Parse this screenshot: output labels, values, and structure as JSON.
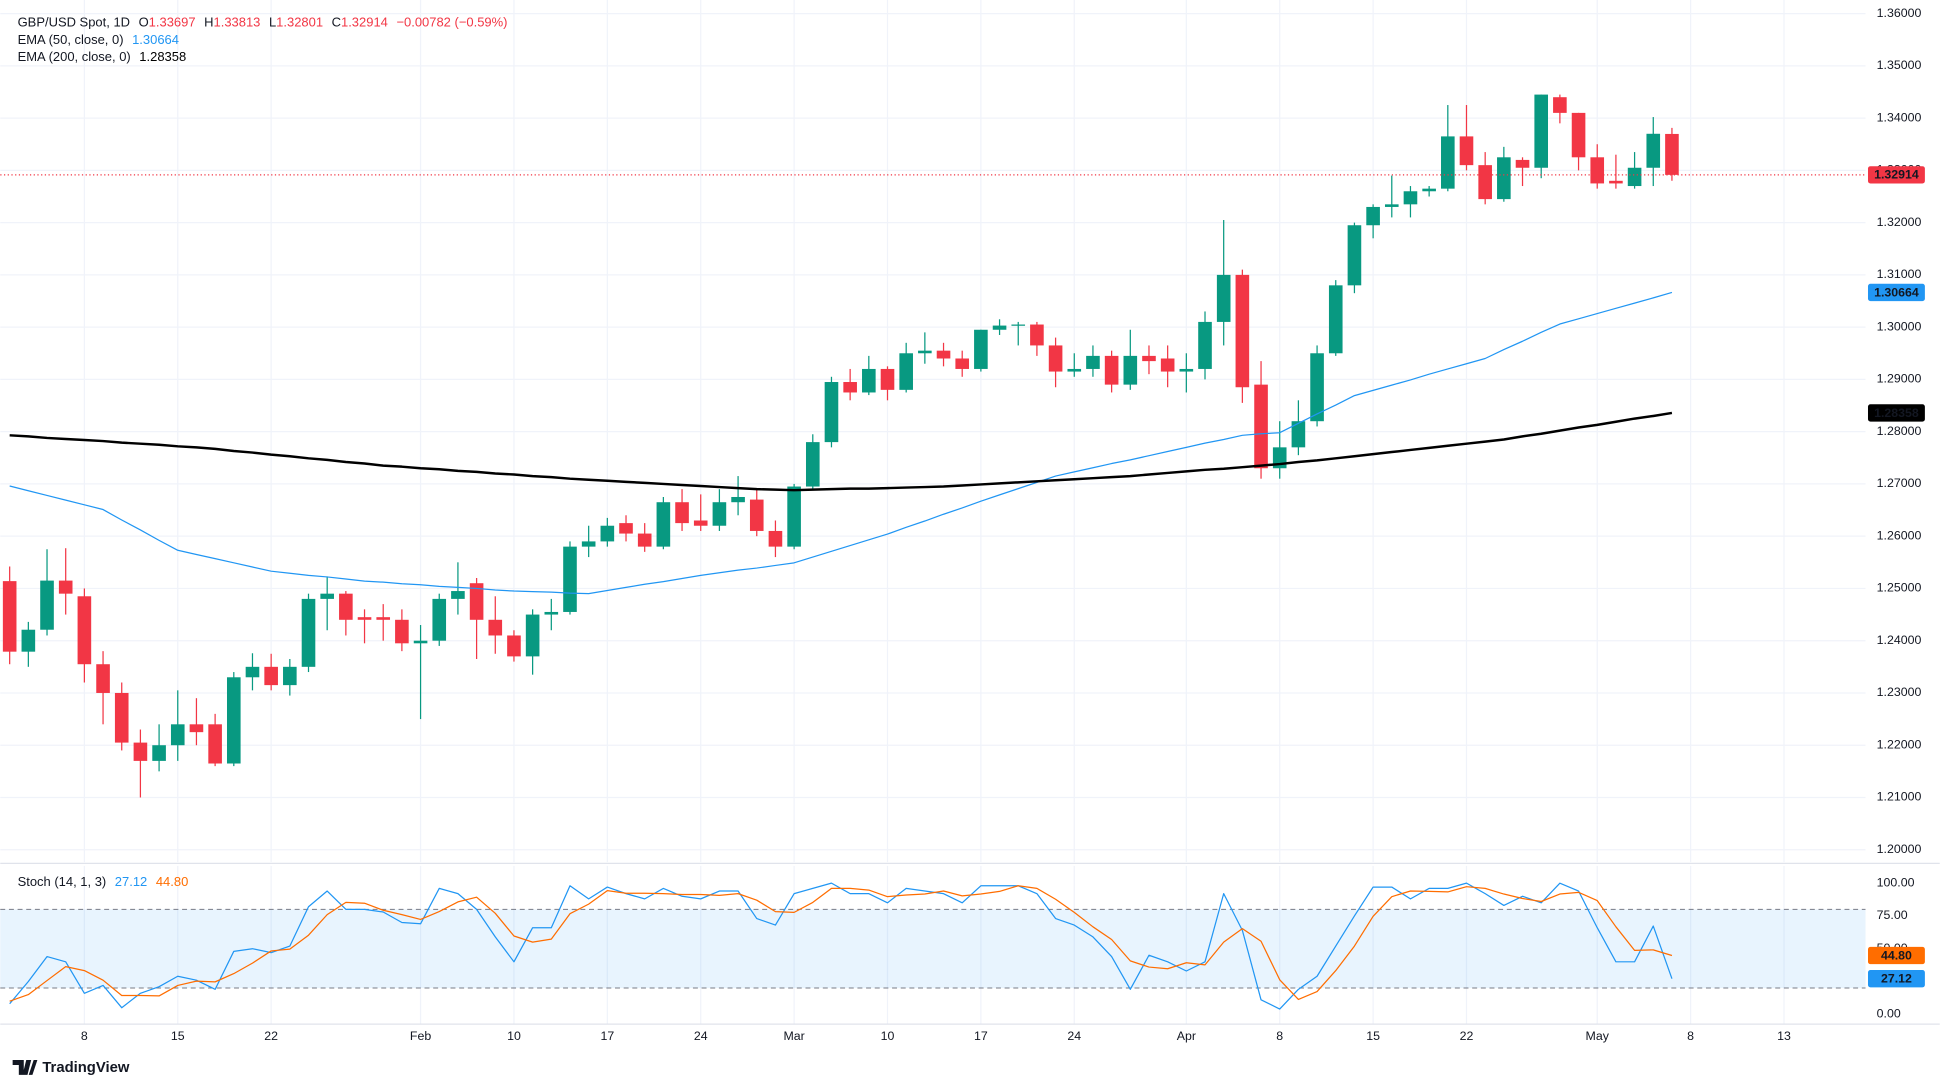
{
  "chart_data": [
    {
      "type": "candlestick",
      "title": "GBP/USD Spot, 1D",
      "ohlc_letters": [
        "O",
        "H",
        "L",
        "C"
      ],
      "change": "−0.00782 (−0.59%)",
      "categories": [
        null,
        null,
        null,
        null,
        "8",
        null,
        null,
        null,
        null,
        "15",
        null,
        null,
        null,
        null,
        "22",
        null,
        null,
        null,
        null,
        null,
        null,
        null,
        "Feb",
        null,
        null,
        null,
        null,
        "10",
        null,
        null,
        null,
        null,
        "17",
        null,
        null,
        null,
        null,
        "24",
        null,
        null,
        null,
        null,
        "Mar",
        null,
        null,
        null,
        null,
        "10",
        null,
        null,
        null,
        null,
        "17",
        null,
        null,
        null,
        null,
        "24",
        null,
        null,
        null,
        null,
        null,
        "Apr",
        null,
        null,
        null,
        null,
        "8",
        null,
        null,
        null,
        null,
        "15",
        null,
        null,
        null,
        null,
        "22",
        null,
        null,
        null,
        null,
        null,
        null,
        "May",
        null,
        null,
        null,
        null,
        "8",
        null,
        null,
        null,
        null,
        "13"
      ],
      "open": [
        1.2514,
        1.2379,
        1.2421,
        1.2515,
        1.2485,
        1.2355,
        1.23,
        1.2205,
        1.217,
        1.22,
        1.224,
        1.224,
        1.2165,
        1.233,
        1.235,
        1.2315,
        1.235,
        1.248,
        1.249,
        1.2445,
        1.2445,
        1.244,
        1.2395,
        1.24,
        1.248,
        1.251,
        1.244,
        1.241,
        1.237,
        1.245,
        1.2455,
        1.258,
        1.259,
        1.2625,
        1.2605,
        1.258,
        1.2665,
        1.263,
        1.262,
        1.2665,
        1.267,
        1.261,
        1.258,
        1.2695,
        1.278,
        1.2895,
        1.2875,
        1.292,
        1.288,
        1.295,
        1.2955,
        1.294,
        1.292,
        1.2995,
        1.3003,
        1.3005,
        1.2965,
        1.2915,
        1.292,
        1.2945,
        1.289,
        1.2945,
        1.294,
        1.2915,
        1.292,
        1.301,
        1.31,
        1.289,
        1.273,
        1.277,
        1.282,
        1.295,
        1.308,
        1.3195,
        1.323,
        1.3235,
        1.326,
        1.3265,
        1.3365,
        1.331,
        1.3245,
        1.332,
        1.3305,
        1.344,
        1.341,
        1.3325,
        1.328,
        1.327,
        1.3305,
        1.33697,
        null,
        null,
        null,
        null,
        null,
        null
      ],
      "high": [
        1.2542,
        1.2436,
        1.2575,
        1.2577,
        1.25,
        1.238,
        1.232,
        1.223,
        1.224,
        1.2305,
        1.229,
        1.226,
        1.234,
        1.2376,
        1.2375,
        1.2365,
        1.249,
        1.2523,
        1.2495,
        1.246,
        1.247,
        1.246,
        1.243,
        1.249,
        1.255,
        1.252,
        1.2485,
        1.242,
        1.246,
        1.248,
        1.259,
        1.262,
        1.2635,
        1.264,
        1.2625,
        1.2675,
        1.269,
        1.268,
        1.269,
        1.2715,
        1.269,
        1.263,
        1.27,
        1.2795,
        1.2905,
        1.292,
        1.2945,
        1.2925,
        1.297,
        1.299,
        1.297,
        1.2955,
        1.2995,
        1.3015,
        1.301,
        1.301,
        1.298,
        1.295,
        1.2965,
        1.2955,
        1.2995,
        1.2965,
        1.2965,
        1.295,
        1.303,
        1.3205,
        1.311,
        1.2935,
        1.282,
        1.286,
        1.2965,
        1.309,
        1.32,
        1.3235,
        1.329,
        1.327,
        1.327,
        1.3425,
        1.3425,
        1.3335,
        1.3345,
        1.3325,
        1.3445,
        1.3445,
        1.341,
        1.335,
        1.333,
        1.3335,
        1.3402,
        1.33813,
        null,
        null,
        null,
        null,
        null,
        null
      ],
      "low": [
        1.2355,
        1.235,
        1.241,
        1.245,
        1.232,
        1.224,
        1.219,
        1.21,
        1.215,
        1.217,
        1.22,
        1.216,
        1.216,
        1.2305,
        1.2305,
        1.2295,
        1.234,
        1.242,
        1.241,
        1.2395,
        1.24,
        1.238,
        1.225,
        1.239,
        1.245,
        1.2365,
        1.2375,
        1.236,
        1.2335,
        1.242,
        1.245,
        1.256,
        1.258,
        1.259,
        1.257,
        1.2575,
        1.261,
        1.261,
        1.261,
        1.264,
        1.26,
        1.256,
        1.2575,
        1.269,
        1.277,
        1.286,
        1.287,
        1.286,
        1.2875,
        1.293,
        1.2925,
        1.2905,
        1.2915,
        1.2985,
        1.2965,
        1.2945,
        1.2885,
        1.2905,
        1.2905,
        1.2875,
        1.288,
        1.291,
        1.2885,
        1.2875,
        1.29,
        1.2965,
        1.2855,
        1.271,
        1.271,
        1.2755,
        1.281,
        1.2945,
        1.3065,
        1.317,
        1.321,
        1.321,
        1.325,
        1.326,
        1.33,
        1.3235,
        1.324,
        1.327,
        1.3285,
        1.339,
        1.33,
        1.3265,
        1.3265,
        1.3265,
        1.327,
        1.32801,
        null,
        null,
        null,
        null,
        null,
        null
      ],
      "close": [
        1.2379,
        1.2421,
        1.2515,
        1.249,
        1.2355,
        1.23,
        1.2205,
        1.217,
        1.22,
        1.224,
        1.2225,
        1.2165,
        1.233,
        1.235,
        1.2315,
        1.235,
        1.248,
        1.249,
        1.244,
        1.244,
        1.244,
        1.2395,
        1.24,
        1.248,
        1.2495,
        1.244,
        1.241,
        1.237,
        1.245,
        1.2455,
        1.258,
        1.259,
        1.262,
        1.2605,
        1.258,
        1.2665,
        1.2625,
        1.262,
        1.2665,
        1.2675,
        1.261,
        1.258,
        1.2695,
        1.278,
        1.2895,
        1.2875,
        1.292,
        1.288,
        1.295,
        1.2955,
        1.294,
        1.292,
        1.2995,
        1.3003,
        1.3005,
        1.2965,
        1.2915,
        1.292,
        1.2945,
        1.289,
        1.2945,
        1.2935,
        1.2915,
        1.292,
        1.301,
        1.31,
        1.2885,
        1.273,
        1.277,
        1.282,
        1.295,
        1.308,
        1.3195,
        1.323,
        1.3235,
        1.326,
        1.3265,
        1.3365,
        1.331,
        1.3245,
        1.3325,
        1.3305,
        1.3445,
        1.341,
        1.3325,
        1.3275,
        1.3275,
        1.3305,
        1.337,
        1.32914,
        null,
        null,
        null,
        null,
        null,
        null
      ],
      "up_color": "#089981",
      "down_color": "#f23645",
      "lines": [
        {
          "name": "EMA (50, close, 0)",
          "color": "#2196f3",
          "width": 1,
          "values": [
            1.2696,
            1.2687,
            1.2678,
            1.2669,
            1.266,
            1.2651,
            1.2631,
            1.2612,
            1.2592,
            1.2573,
            1.2565,
            1.2557,
            1.2549,
            1.2541,
            1.2533,
            1.2529,
            1.2525,
            1.2522,
            1.2518,
            1.2514,
            1.2512,
            1.2509,
            1.2507,
            1.2504,
            1.2502,
            1.25,
            1.2497,
            1.2495,
            1.2494,
            1.2493,
            1.2491,
            1.249,
            1.2496,
            1.2502,
            1.2508,
            1.2513,
            1.2519,
            1.2525,
            1.253,
            1.2535,
            1.2539,
            1.2544,
            1.2549,
            1.256,
            1.2571,
            1.2582,
            1.2593,
            1.2604,
            1.2617,
            1.2629,
            1.2642,
            1.2654,
            1.2667,
            1.2679,
            1.2691,
            1.2703,
            1.2715,
            1.2723,
            1.2731,
            1.2739,
            1.2746,
            1.2754,
            1.2762,
            1.277,
            1.2778,
            1.2785,
            1.2793,
            1.2796,
            1.2798,
            1.2816,
            1.2834,
            1.2851,
            1.2869,
            1.2879,
            1.2889,
            1.2899,
            1.291,
            1.292,
            1.293,
            1.294,
            1.2957,
            1.2973,
            1.299,
            1.3006,
            1.3016,
            1.3026,
            1.3036,
            1.3046,
            1.3056,
            1.30664,
            null,
            null,
            null,
            null,
            null,
            null
          ]
        },
        {
          "name": "EMA (200, close, 0)",
          "color": "#000000",
          "width": 2,
          "values": [
            1.2793,
            1.2791,
            1.2788,
            1.2786,
            1.2784,
            1.2782,
            1.2779,
            1.2777,
            1.2775,
            1.2772,
            1.277,
            1.2767,
            1.2763,
            1.276,
            1.2756,
            1.2753,
            1.2749,
            1.2746,
            1.2742,
            1.2739,
            1.2735,
            1.2733,
            1.273,
            1.2728,
            1.2725,
            1.2723,
            1.272,
            1.2718,
            1.2715,
            1.2713,
            1.271,
            1.2708,
            1.2706,
            1.2704,
            1.2702,
            1.27,
            1.2698,
            1.2696,
            1.2694,
            1.2692,
            1.269,
            1.2689,
            1.2688,
            1.2689,
            1.269,
            1.2691,
            1.2691,
            1.2692,
            1.2693,
            1.2694,
            1.2695,
            1.2697,
            1.2699,
            1.2701,
            1.2703,
            1.2705,
            1.2707,
            1.2709,
            1.2711,
            1.2713,
            1.2715,
            1.2718,
            1.2721,
            1.2724,
            1.2727,
            1.2729,
            1.2732,
            1.2735,
            1.2738,
            1.2742,
            1.2745,
            1.2749,
            1.2753,
            1.2757,
            1.2761,
            1.2765,
            1.2769,
            1.2773,
            1.2777,
            1.2781,
            1.2785,
            1.2791,
            1.2796,
            1.2802,
            1.2808,
            1.2813,
            1.2819,
            1.2825,
            1.283,
            1.28358,
            null,
            null,
            null,
            null,
            null,
            null
          ]
        }
      ],
      "ylim": [
        1.19763,
        1.3626
      ],
      "yticks": [
        {
          "value": 1.2,
          "label": "1.20000"
        },
        {
          "value": 1.21,
          "label": "1.21000"
        },
        {
          "value": 1.22,
          "label": "1.22000"
        },
        {
          "value": 1.23,
          "label": "1.23000"
        },
        {
          "value": 1.24,
          "label": "1.24000"
        },
        {
          "value": 1.25,
          "label": "1.25000"
        },
        {
          "value": 1.26,
          "label": "1.26000"
        },
        {
          "value": 1.27,
          "label": "1.27000"
        },
        {
          "value": 1.28,
          "label": "1.28000"
        },
        {
          "value": 1.29,
          "label": "1.29000"
        },
        {
          "value": 1.3,
          "label": "1.30000"
        },
        {
          "value": 1.31,
          "label": "1.31000"
        },
        {
          "value": 1.32,
          "label": "1.32000"
        },
        {
          "value": 1.33,
          "label": "1.33000"
        },
        {
          "value": 1.34,
          "label": "1.34000"
        },
        {
          "value": 1.35,
          "label": "1.35000"
        },
        {
          "value": 1.36,
          "label": "1.36000"
        }
      ],
      "grid": true
    },
    {
      "type": "line",
      "title": "Stoch (14, 1, 3)",
      "series": [
        {
          "color": "#2196f3",
          "values": [
            8,
            25,
            44,
            40,
            16,
            22,
            5,
            16,
            21,
            29,
            26,
            19,
            48,
            50,
            47,
            52,
            82,
            94,
            80,
            80,
            78,
            70,
            69,
            96,
            92,
            80,
            59,
            40,
            66,
            66,
            98,
            88,
            97,
            92,
            88,
            96,
            90,
            88,
            94,
            94,
            73,
            68,
            92,
            96,
            100,
            92,
            92,
            85,
            96,
            94,
            92,
            85,
            98,
            98,
            98,
            92,
            73,
            68,
            59,
            44,
            19,
            45,
            40,
            33,
            40,
            92,
            64,
            11,
            4,
            19,
            29,
            52,
            75,
            97,
            97,
            88,
            96,
            96,
            100,
            92,
            83,
            90,
            85,
            100,
            94,
            66,
            40,
            40,
            67.28,
            27.12,
            null,
            null,
            null,
            null,
            null,
            null
          ]
        },
        {
          "color": "#ff6d00",
          "values": [
            10,
            15,
            25.7,
            36.3,
            33.3,
            26,
            14.3,
            14.3,
            14,
            22,
            25.3,
            24.7,
            31,
            39,
            48.3,
            49.7,
            60.3,
            76,
            85.3,
            84.7,
            79.3,
            76,
            72.3,
            78.3,
            85.7,
            89.3,
            77,
            59.7,
            55,
            57.3,
            76.7,
            84,
            94.3,
            92.3,
            92.3,
            92,
            91.3,
            91.3,
            90.7,
            92,
            87,
            78.3,
            77.7,
            85.3,
            96,
            96,
            94.7,
            89.7,
            91,
            91.7,
            94,
            90.3,
            91.7,
            93.7,
            98,
            96,
            87.7,
            77.7,
            66.7,
            57,
            40.7,
            36,
            34.7,
            39.3,
            37.7,
            55,
            65.3,
            55.7,
            26.3,
            11.3,
            17.3,
            33.3,
            52,
            74.7,
            89.7,
            94,
            93.7,
            93.3,
            97.3,
            96,
            91.7,
            88.3,
            86,
            91.7,
            93,
            86.7,
            66.7,
            48.7,
            49.1,
            44.8,
            null,
            null,
            null,
            null,
            null,
            null
          ],
          "value_labels": [
            null,
            null,
            null,
            null,
            null,
            null,
            null,
            null,
            null,
            null,
            null,
            null,
            null,
            null,
            null,
            null,
            null,
            null,
            null,
            null,
            null,
            null,
            null,
            null,
            null,
            null,
            null,
            null,
            null,
            null,
            null,
            null,
            null,
            null,
            null,
            null,
            null,
            null,
            null,
            null,
            null,
            null,
            null,
            null,
            null,
            null,
            null,
            null,
            null,
            null,
            null,
            null,
            null,
            null,
            null,
            null,
            null,
            null,
            null,
            null,
            null,
            null,
            null,
            null,
            null,
            null,
            null,
            null,
            null,
            null,
            null,
            null,
            null,
            null,
            null,
            null,
            null,
            null,
            null,
            null,
            null,
            null,
            null,
            null,
            null,
            null,
            null,
            null,
            null,
            "44.80",
            null,
            null,
            null,
            null,
            null,
            null
          ]
        }
      ],
      "bands": [
        20,
        80
      ],
      "band_color": "#2196f3",
      "ylim": [
        -7.55,
        113.21
      ],
      "yticks": [
        {
          "value": 100,
          "label": "100.00"
        },
        {
          "value": 75,
          "label": "75.00"
        },
        {
          "value": 50,
          "label": "50.00"
        },
        {
          "value": 0,
          "label": "0.00"
        }
      ]
    }
  ],
  "brand": "TradingView"
}
